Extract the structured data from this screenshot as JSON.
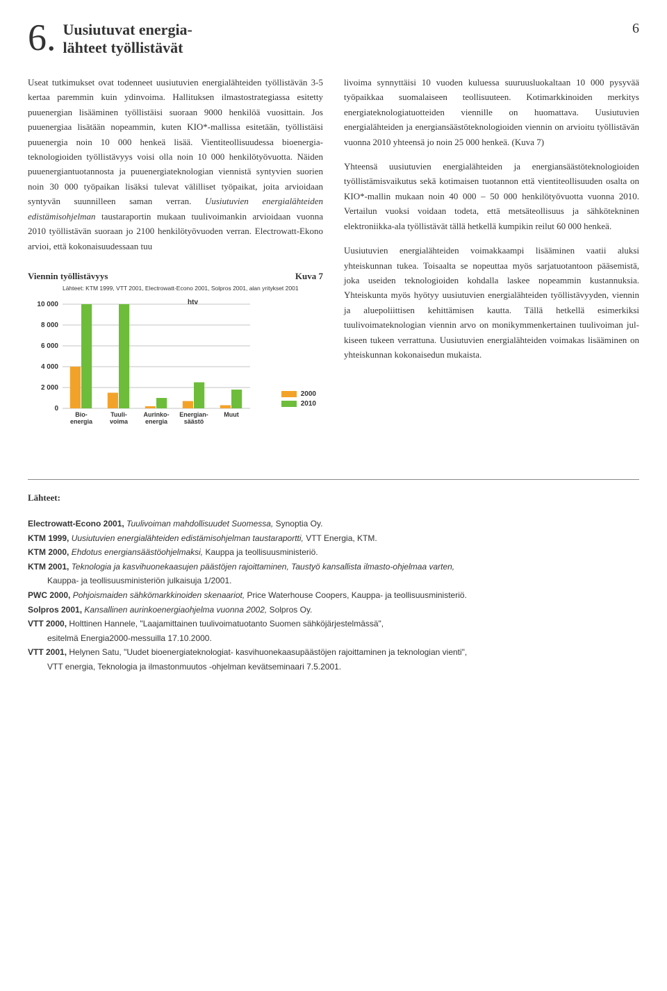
{
  "header": {
    "section_number": "6",
    "section_title_line1": "Uusiutuvat energia-",
    "section_title_line2": "lähteet työllistävät",
    "page_number": "6"
  },
  "body": {
    "col1_p1_a": "Useat tutkimukset ovat todenneet uusiutuvien energia­lähteiden työllistävän 3-5 kertaa paremmin kuin ydin­voima. Hallituksen ilmastostrategiassa esitetty puuener­gian lisääminen työllistäisi suoraan 9000 henkilöä vuosittain. Jos puuenergiaa lisätään nopeammin, kuten KIO*-mallissa esitetään, työllistäisi puuenergia noin 10 000 henkeä lisää. Vientiteollisuudessa bioenergia­teknologioiden työllistävyys voisi olla noin 10 000 hen­kilötyövuotta. Näiden puuenergiantuotannosta ja puuenergiateknologian viennistä syntyvien suorien noin 30 000 työpaikan lisäksi tulevat välilliset työpaikat, joita arvioidaan syntyvän suunnilleen saman verran. ",
    "col1_p1_b": "Uusiutu­vien energialähteiden edistämisohjelman",
    "col1_p1_c": " taustaraportin mukaan tuulivoimankin arvioidaan vuonna 2010 työl­listävän suoraan jo 2100 henkilötyövuoden verran. Electrowatt-Ekono arvioi, että kokonaisuudessaan tuu­",
    "col2_p1": "livoima synnyttäisi 10 vuoden kuluessa suuruusluokal­taan 10 000 pysyvää työpaikkaa suomalaiseen teolli­suuteen. Kotimarkkinoiden merkitys energiateknologia­tuotteiden viennille on huomattava. Uusiutuvien energialähteiden ja energiansäästöteknologioiden vien­nin on arvioitu työllistävän  vuonna 2010 yhteensä jo noin 25 000 henkeä. (Kuva 7)",
    "col2_p2": "Yhteensä uusiutuvien energialähteiden ja energiansääs­töteknologioiden työllistämisvaikutus sekä kotimaisen tuotannon että vientiteollisuuden osalta on KIO*-mallin mukaan noin 40 000 – 50 000 henkilötyövuotta vuon­na 2010. Vertailun vuoksi voidaan todeta, että metsä­teollisuus ja sähkötekninen elektroniikka-ala työllistävät tällä hetkellä kumpikin reilut 60 000 henkeä.",
    "col2_p3": "Uusiutuvien energialähteiden voimakkaampi lisääminen vaatii aluksi yhteiskunnan tukea. Toisaalta se nopeuttaa myös sarjatuotantoon pääsemistä, joka useiden tekno­logioiden kohdalla laskee nopeammin kustannuksia. Yhteiskunta myös hyötyy uusiutuvien energialähteiden työllistävyyden, viennin ja aluepoliittisen kehittämisen kautta. Tällä hetkellä esimerkiksi tuulivoimateknologian viennin arvo on monikymmenkertainen tuulivoiman jul­kiseen tukeen verrattuna. Uusiutuvien energialähteiden voimakas lisääminen on yhteiskunnan kokonaisedun mukaista."
  },
  "chart": {
    "title": "Viennin työllistävyys",
    "figure_label": "Kuva 7",
    "sources": "Lähteet: KTM 1999, VTT 2001, Electrowatt-Econo 2001, Solpros 2001, alan yritykset 2001",
    "unit_label": "htv",
    "type": "bar",
    "categories": [
      "Bio-\nenergia",
      "Tuuli-\nvoima",
      "Aurinko-\nenergia",
      "Energian-\nsäästö",
      "Muut"
    ],
    "series": [
      {
        "label": "2000",
        "color": "#f3a229",
        "values": [
          4000,
          1500,
          200,
          700,
          300
        ]
      },
      {
        "label": "2010",
        "color": "#6dbd3b",
        "values": [
          10000,
          10000,
          1000,
          2500,
          1800
        ]
      }
    ],
    "ylim": [
      0,
      10000
    ],
    "ytick_step": 2000,
    "ytick_labels": [
      "0",
      "2 000",
      "4 000",
      "6 000",
      "8 000",
      "10 000"
    ],
    "grid_color": "#888888",
    "background_color": "#ffffff",
    "yaxis_font_size": 10,
    "xaxis_font_size": 9,
    "bar_group_width": 0.6
  },
  "references": {
    "title": "Lähteet:",
    "items": [
      {
        "bold": "Electrowatt-Econo 2001,",
        "italic": " Tuulivoiman mahdollisuudet Suomessa,",
        "tail": " Synoptia Oy."
      },
      {
        "bold": "KTM 1999,",
        "italic": " Uusiutuvien energialähteiden edistämisohjelman taustaraportti,",
        "tail": " VTT Energia, KTM."
      },
      {
        "bold": "KTM 2000,",
        "italic": " Ehdotus energiansäästöohjelmaksi,",
        "tail": " Kauppa ja teollisuusministeriö."
      },
      {
        "bold": "KTM 2001,",
        "italic": " Teknologia ja kasvihuonekaasujen päästöjen rajoittaminen, Taustyö kansallista ilmasto-ohjelmaa varten,",
        "tail": "",
        "cont": "Kauppa- ja teollisuusministeriön julkaisuja 1/2001."
      },
      {
        "bold": "PWC 2000,",
        "italic": " Pohjoismaiden sähkömarkkinoiden skenaariot, ",
        "tail": " Price Waterhouse Coopers, Kauppa- ja teollisuusministeriö."
      },
      {
        "bold": "Solpros 2001,",
        "italic": " Kansallinen aurinkoenergiaohjelma vuonna 2002,",
        "tail": " Solpros Oy."
      },
      {
        "bold": "VTT 2000,",
        "italic": "",
        "tail": " Holttinen Hannele, \"Laajamittainen tuulivoimatuotanto Suomen sähköjärjestelmässä\",",
        "cont": "esitelmä Energia2000-messuilla 17.10.2000."
      },
      {
        "bold": "VTT 2001,",
        "italic": "",
        "tail": " Helynen Satu, \"Uudet bioenergiateknologiat- kasvihuonekaasupäästöjen rajoittaminen ja teknologian vienti\",",
        "cont": "VTT energia, Teknologia ja ilmastonmuutos -ohjelman kevätseminaari 7.5.2001."
      }
    ]
  }
}
